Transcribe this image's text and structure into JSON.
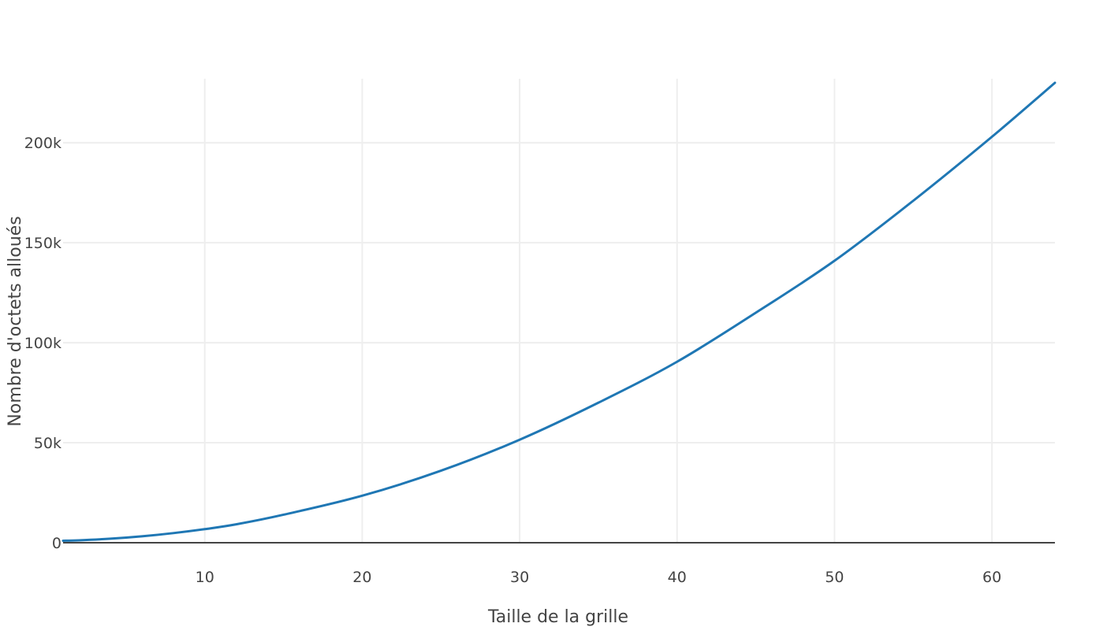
{
  "chart_data": {
    "type": "line",
    "title": "",
    "xlabel": "Taille de la grille",
    "ylabel": "Nombre d'octets alloués",
    "xlim": [
      1,
      64
    ],
    "ylim": [
      0,
      232000
    ],
    "grid": true,
    "legend": "none",
    "x_ticks": [
      {
        "value": 10,
        "label": "10"
      },
      {
        "value": 20,
        "label": "20"
      },
      {
        "value": 30,
        "label": "30"
      },
      {
        "value": 40,
        "label": "40"
      },
      {
        "value": 50,
        "label": "50"
      },
      {
        "value": 60,
        "label": "60"
      }
    ],
    "y_ticks": [
      {
        "value": 0,
        "label": "0"
      },
      {
        "value": 50000,
        "label": "50k"
      },
      {
        "value": 100000,
        "label": "100k"
      },
      {
        "value": 150000,
        "label": "150k"
      },
      {
        "value": 200000,
        "label": "200k"
      }
    ],
    "series": [
      {
        "color": "#1f77b4",
        "x": [
          1,
          2,
          4,
          6,
          8,
          10,
          12,
          15,
          20,
          25,
          30,
          35,
          40,
          45,
          50,
          55,
          60,
          64
        ],
        "y": [
          1000,
          1200,
          2000,
          3200,
          4800,
          6800,
          9200,
          14000,
          23500,
          36000,
          51500,
          70000,
          90500,
          115000,
          141000,
          171000,
          203000,
          230000
        ]
      }
    ]
  }
}
